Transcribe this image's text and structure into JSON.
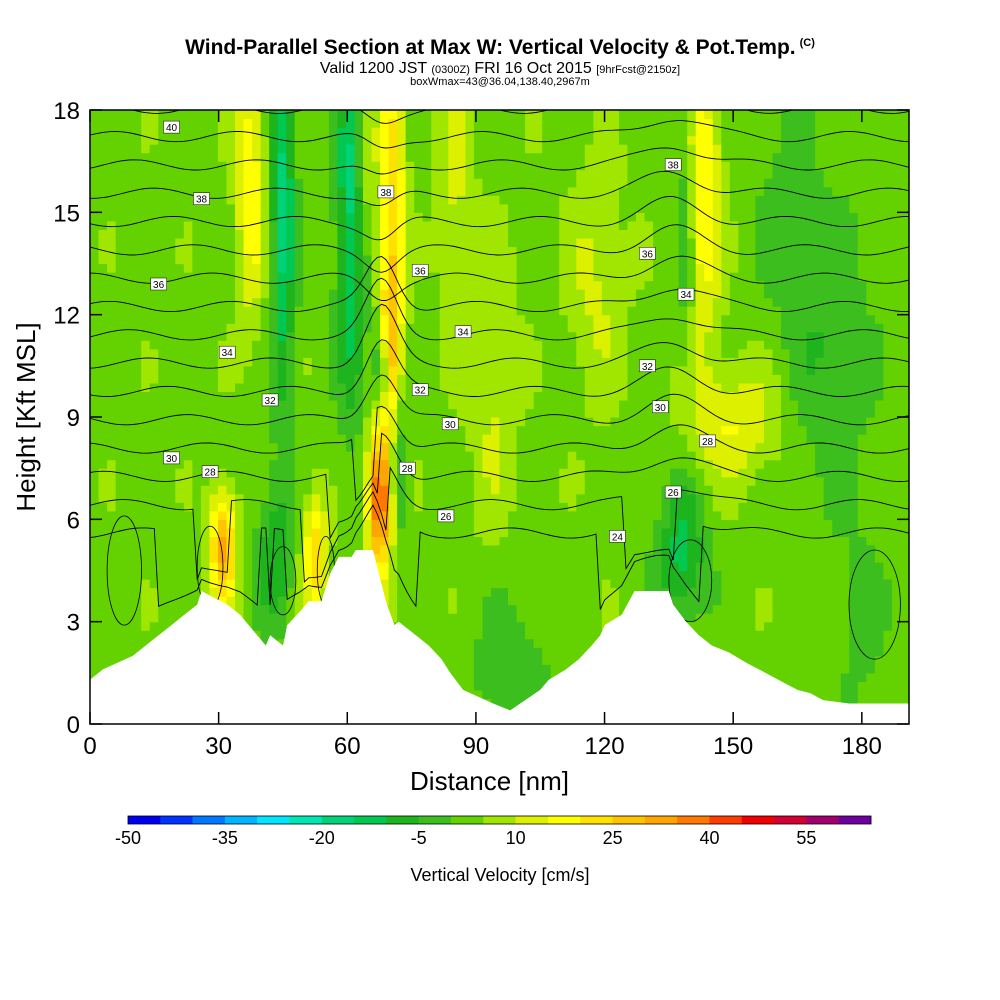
{
  "header": {
    "title": "Wind-Parallel Section at Max W: Vertical Velocity & Pot.Temp.",
    "title_mark": "(C)",
    "valid_prefix": "Valid 1200 JST",
    "valid_zulu": "(0300Z)",
    "valid_date": "FRI 16 Oct 2015",
    "forecast_info": "[9hrFcst@2150z]",
    "box_info": "boxWmax=43@36.04,138.40,2967m"
  },
  "chart_data": {
    "type": "heatmap",
    "title": "Wind-Parallel Section at Max W: Vertical Velocity & Pot.Temp.",
    "xlabel": "Distance [nm]",
    "ylabel": "Height [Kft MSL]",
    "xlim": [
      0,
      191
    ],
    "ylim": [
      0,
      18
    ],
    "x_ticks": [
      0,
      30,
      60,
      90,
      120,
      150,
      180
    ],
    "y_ticks": [
      0,
      3,
      6,
      9,
      12,
      15,
      18
    ],
    "grid": false,
    "terrain": {
      "x": [
        0,
        3,
        10,
        13,
        16,
        19,
        22,
        25,
        26,
        32,
        35,
        37,
        39,
        41,
        42,
        45,
        46,
        49,
        51,
        54,
        56,
        58,
        61,
        62,
        64,
        66,
        69,
        71,
        72,
        76,
        79,
        82,
        84,
        87,
        94,
        98,
        105,
        107,
        111,
        114,
        117,
        119,
        120,
        124,
        127,
        135,
        136,
        139,
        142,
        145,
        149,
        153,
        156,
        159,
        162,
        165,
        168,
        171,
        177,
        180,
        191
      ],
      "y": [
        1.3,
        1.6,
        2.0,
        2.3,
        2.6,
        2.9,
        3.2,
        3.5,
        3.9,
        3.5,
        3.2,
        2.9,
        2.6,
        2.3,
        2.6,
        2.3,
        2.9,
        3.3,
        3.6,
        3.6,
        4.4,
        4.9,
        4.9,
        5.1,
        5.1,
        5.1,
        3.6,
        2.9,
        3.0,
        2.6,
        2.3,
        1.9,
        1.5,
        1.0,
        0.6,
        0.4,
        1.0,
        1.3,
        1.6,
        1.9,
        2.3,
        2.6,
        2.9,
        3.2,
        3.9,
        3.9,
        3.5,
        3.0,
        2.6,
        2.3,
        2.1,
        1.8,
        1.6,
        1.4,
        1.2,
        1.0,
        0.9,
        0.7,
        0.6,
        0.6,
        0.6
      ]
    },
    "velocity_features": [
      {
        "x": 67.5,
        "y": 6.6,
        "sx": 2.0,
        "sy": 1.5,
        "w": 40
      },
      {
        "x": 70.5,
        "y": 14.5,
        "sx": 2.2,
        "sy": 4.0,
        "w": 22
      },
      {
        "x": 69.5,
        "y": 11.0,
        "sx": 1.5,
        "sy": 1.3,
        "w": 16
      },
      {
        "x": 31.0,
        "y": 5.2,
        "sx": 2.3,
        "sy": 1.2,
        "w": 28
      },
      {
        "x": 37.5,
        "y": 16.0,
        "sx": 2.5,
        "sy": 3.0,
        "w": 16
      },
      {
        "x": 52.5,
        "y": 5.0,
        "sx": 2.0,
        "sy": 1.2,
        "w": 22
      },
      {
        "x": 64.0,
        "y": 16.5,
        "sx": 1.5,
        "sy": 2.0,
        "w": 12
      },
      {
        "x": 143.0,
        "y": 15.5,
        "sx": 3.0,
        "sy": 3.0,
        "w": 18
      },
      {
        "x": 150.0,
        "y": 8.8,
        "sx": 8.0,
        "sy": 1.2,
        "w": 12
      },
      {
        "x": 118.0,
        "y": 13.0,
        "sx": 5.0,
        "sy": 2.5,
        "w": 8
      },
      {
        "x": 94.0,
        "y": 10.0,
        "sx": 4.0,
        "sy": 3.0,
        "w": 8
      },
      {
        "x": 85.0,
        "y": 16.0,
        "sx": 3.0,
        "sy": 3.0,
        "w": 8
      },
      {
        "x": 45.0,
        "y": 15.0,
        "sx": 2.0,
        "sy": 4.0,
        "w": -20
      },
      {
        "x": 61.0,
        "y": 15.0,
        "sx": 2.5,
        "sy": 4.0,
        "w": -20
      },
      {
        "x": 68.0,
        "y": 10.5,
        "sx": 1.2,
        "sy": 1.0,
        "w": -22
      },
      {
        "x": 72.0,
        "y": 7.5,
        "sx": 1.5,
        "sy": 1.5,
        "w": -12
      },
      {
        "x": 43.0,
        "y": 5.0,
        "sx": 3.0,
        "sy": 1.5,
        "w": -12
      },
      {
        "x": 138.0,
        "y": 5.0,
        "sx": 4.0,
        "sy": 1.5,
        "w": -15
      },
      {
        "x": 139.0,
        "y": 15.0,
        "sx": 1.5,
        "sy": 3.0,
        "w": -10
      },
      {
        "x": 172.0,
        "y": 11.0,
        "sx": 7.0,
        "sy": 3.0,
        "w": -8
      },
      {
        "x": 162.0,
        "y": 15.5,
        "sx": 5.0,
        "sy": 2.0,
        "w": -5
      },
      {
        "x": 98.0,
        "y": 1.5,
        "sx": 6.0,
        "sy": 1.5,
        "w": -8
      },
      {
        "x": 180.0,
        "y": 3.0,
        "sx": 4.0,
        "sy": 2.0,
        "w": -5
      }
    ],
    "theta_contours": {
      "levels": [
        24,
        25,
        26,
        27,
        28,
        29,
        30,
        31,
        32,
        33,
        34,
        35,
        36,
        37,
        38,
        39,
        40
      ],
      "labels": [
        {
          "text": "40",
          "x": 19,
          "y": 17.5
        },
        {
          "text": "38",
          "x": 26,
          "y": 15.4
        },
        {
          "text": "36",
          "x": 16,
          "y": 12.9
        },
        {
          "text": "34",
          "x": 32,
          "y": 10.9
        },
        {
          "text": "32",
          "x": 42,
          "y": 9.5
        },
        {
          "text": "30",
          "x": 19,
          "y": 7.8
        },
        {
          "text": "28",
          "x": 28,
          "y": 7.4
        },
        {
          "text": "38",
          "x": 69,
          "y": 15.6
        },
        {
          "text": "36",
          "x": 77,
          "y": 13.3
        },
        {
          "text": "34",
          "x": 87,
          "y": 11.5
        },
        {
          "text": "32",
          "x": 77,
          "y": 9.8
        },
        {
          "text": "30",
          "x": 84,
          "y": 8.8
        },
        {
          "text": "28",
          "x": 74,
          "y": 7.5
        },
        {
          "text": "26",
          "x": 83,
          "y": 6.1
        },
        {
          "text": "24",
          "x": 123,
          "y": 5.5
        },
        {
          "text": "26",
          "x": 136,
          "y": 6.8
        },
        {
          "text": "28",
          "x": 144,
          "y": 8.3
        },
        {
          "text": "30",
          "x": 133,
          "y": 9.3
        },
        {
          "text": "32",
          "x": 130,
          "y": 10.5
        },
        {
          "text": "34",
          "x": 139,
          "y": 12.6
        },
        {
          "text": "36",
          "x": 130,
          "y": 13.8
        },
        {
          "text": "38",
          "x": 136,
          "y": 16.4
        }
      ]
    },
    "colorbar": {
      "levels": [
        -50,
        -45,
        -40,
        -35,
        -30,
        -25,
        -20,
        -15,
        -10,
        -5,
        0,
        5,
        10,
        15,
        20,
        25,
        30,
        35,
        40,
        45,
        50,
        55,
        60
      ],
      "colors": [
        "#0000f0",
        "#0033ff",
        "#0077ff",
        "#00b4ff",
        "#00e6ff",
        "#00e6b4",
        "#00d278",
        "#00c850",
        "#1eb41e",
        "#3cbe1e",
        "#64d200",
        "#a0e600",
        "#dcf000",
        "#ffff00",
        "#ffe100",
        "#ffc300",
        "#ffa500",
        "#ff7800",
        "#ff3c00",
        "#f00000",
        "#d20032",
        "#a0006e",
        "#6e00a0"
      ],
      "tick_labels": [
        "-50",
        "-35",
        "-20",
        "-5",
        "10",
        "25",
        "40",
        "55"
      ],
      "label": "Vertical Velocity [cm/s]"
    }
  }
}
